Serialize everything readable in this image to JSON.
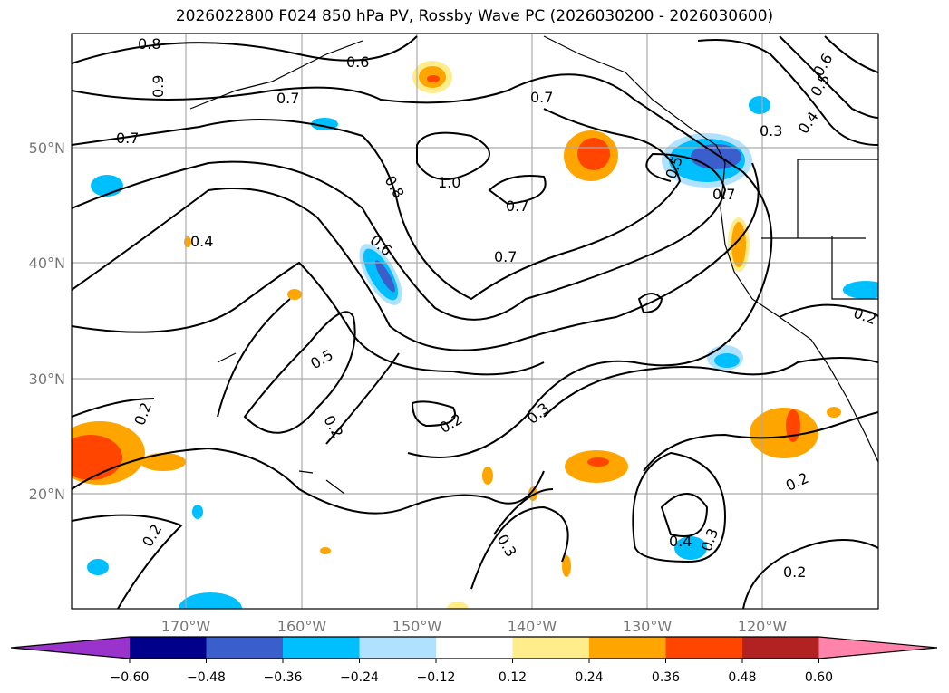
{
  "title": "2026022800 F024 850 hPa PV, Rossby Wave PC (2026030200 - 2026030600)",
  "map": {
    "lon_ticks": [
      "170°W",
      "160°W",
      "150°W",
      "140°W",
      "130°W",
      "120°W"
    ],
    "lat_ticks": [
      "50°N",
      "40°N",
      "30°N",
      "20°N"
    ],
    "contour_labels": [
      "0.8",
      "0.6",
      "0.9",
      "0.7",
      "0.7",
      "0.7",
      "0.3",
      "0.4",
      "0.5",
      "0.6",
      "1.0",
      "0.8",
      "0.7",
      "0.7",
      "0.6",
      "0.5",
      "0.7",
      "0.4",
      "0.5",
      "0.2",
      "0.2",
      "0.2",
      "0.3",
      "0.2",
      "0.2",
      "0.3",
      "0.4",
      "0.3",
      "0.2",
      "0.2"
    ]
  },
  "colorbar": {
    "ticks": [
      "−0.60",
      "−0.48",
      "−0.36",
      "−0.24",
      "−0.12",
      "0.12",
      "0.24",
      "0.36",
      "0.48",
      "0.60"
    ],
    "colors": [
      "#9933cc",
      "#00008b",
      "#3a5fcd",
      "#00bfff",
      "#b0e2ff",
      "#ffffff",
      "#ffec8b",
      "#ffa500",
      "#ff4500",
      "#b22222",
      "#ff83aa"
    ]
  }
}
